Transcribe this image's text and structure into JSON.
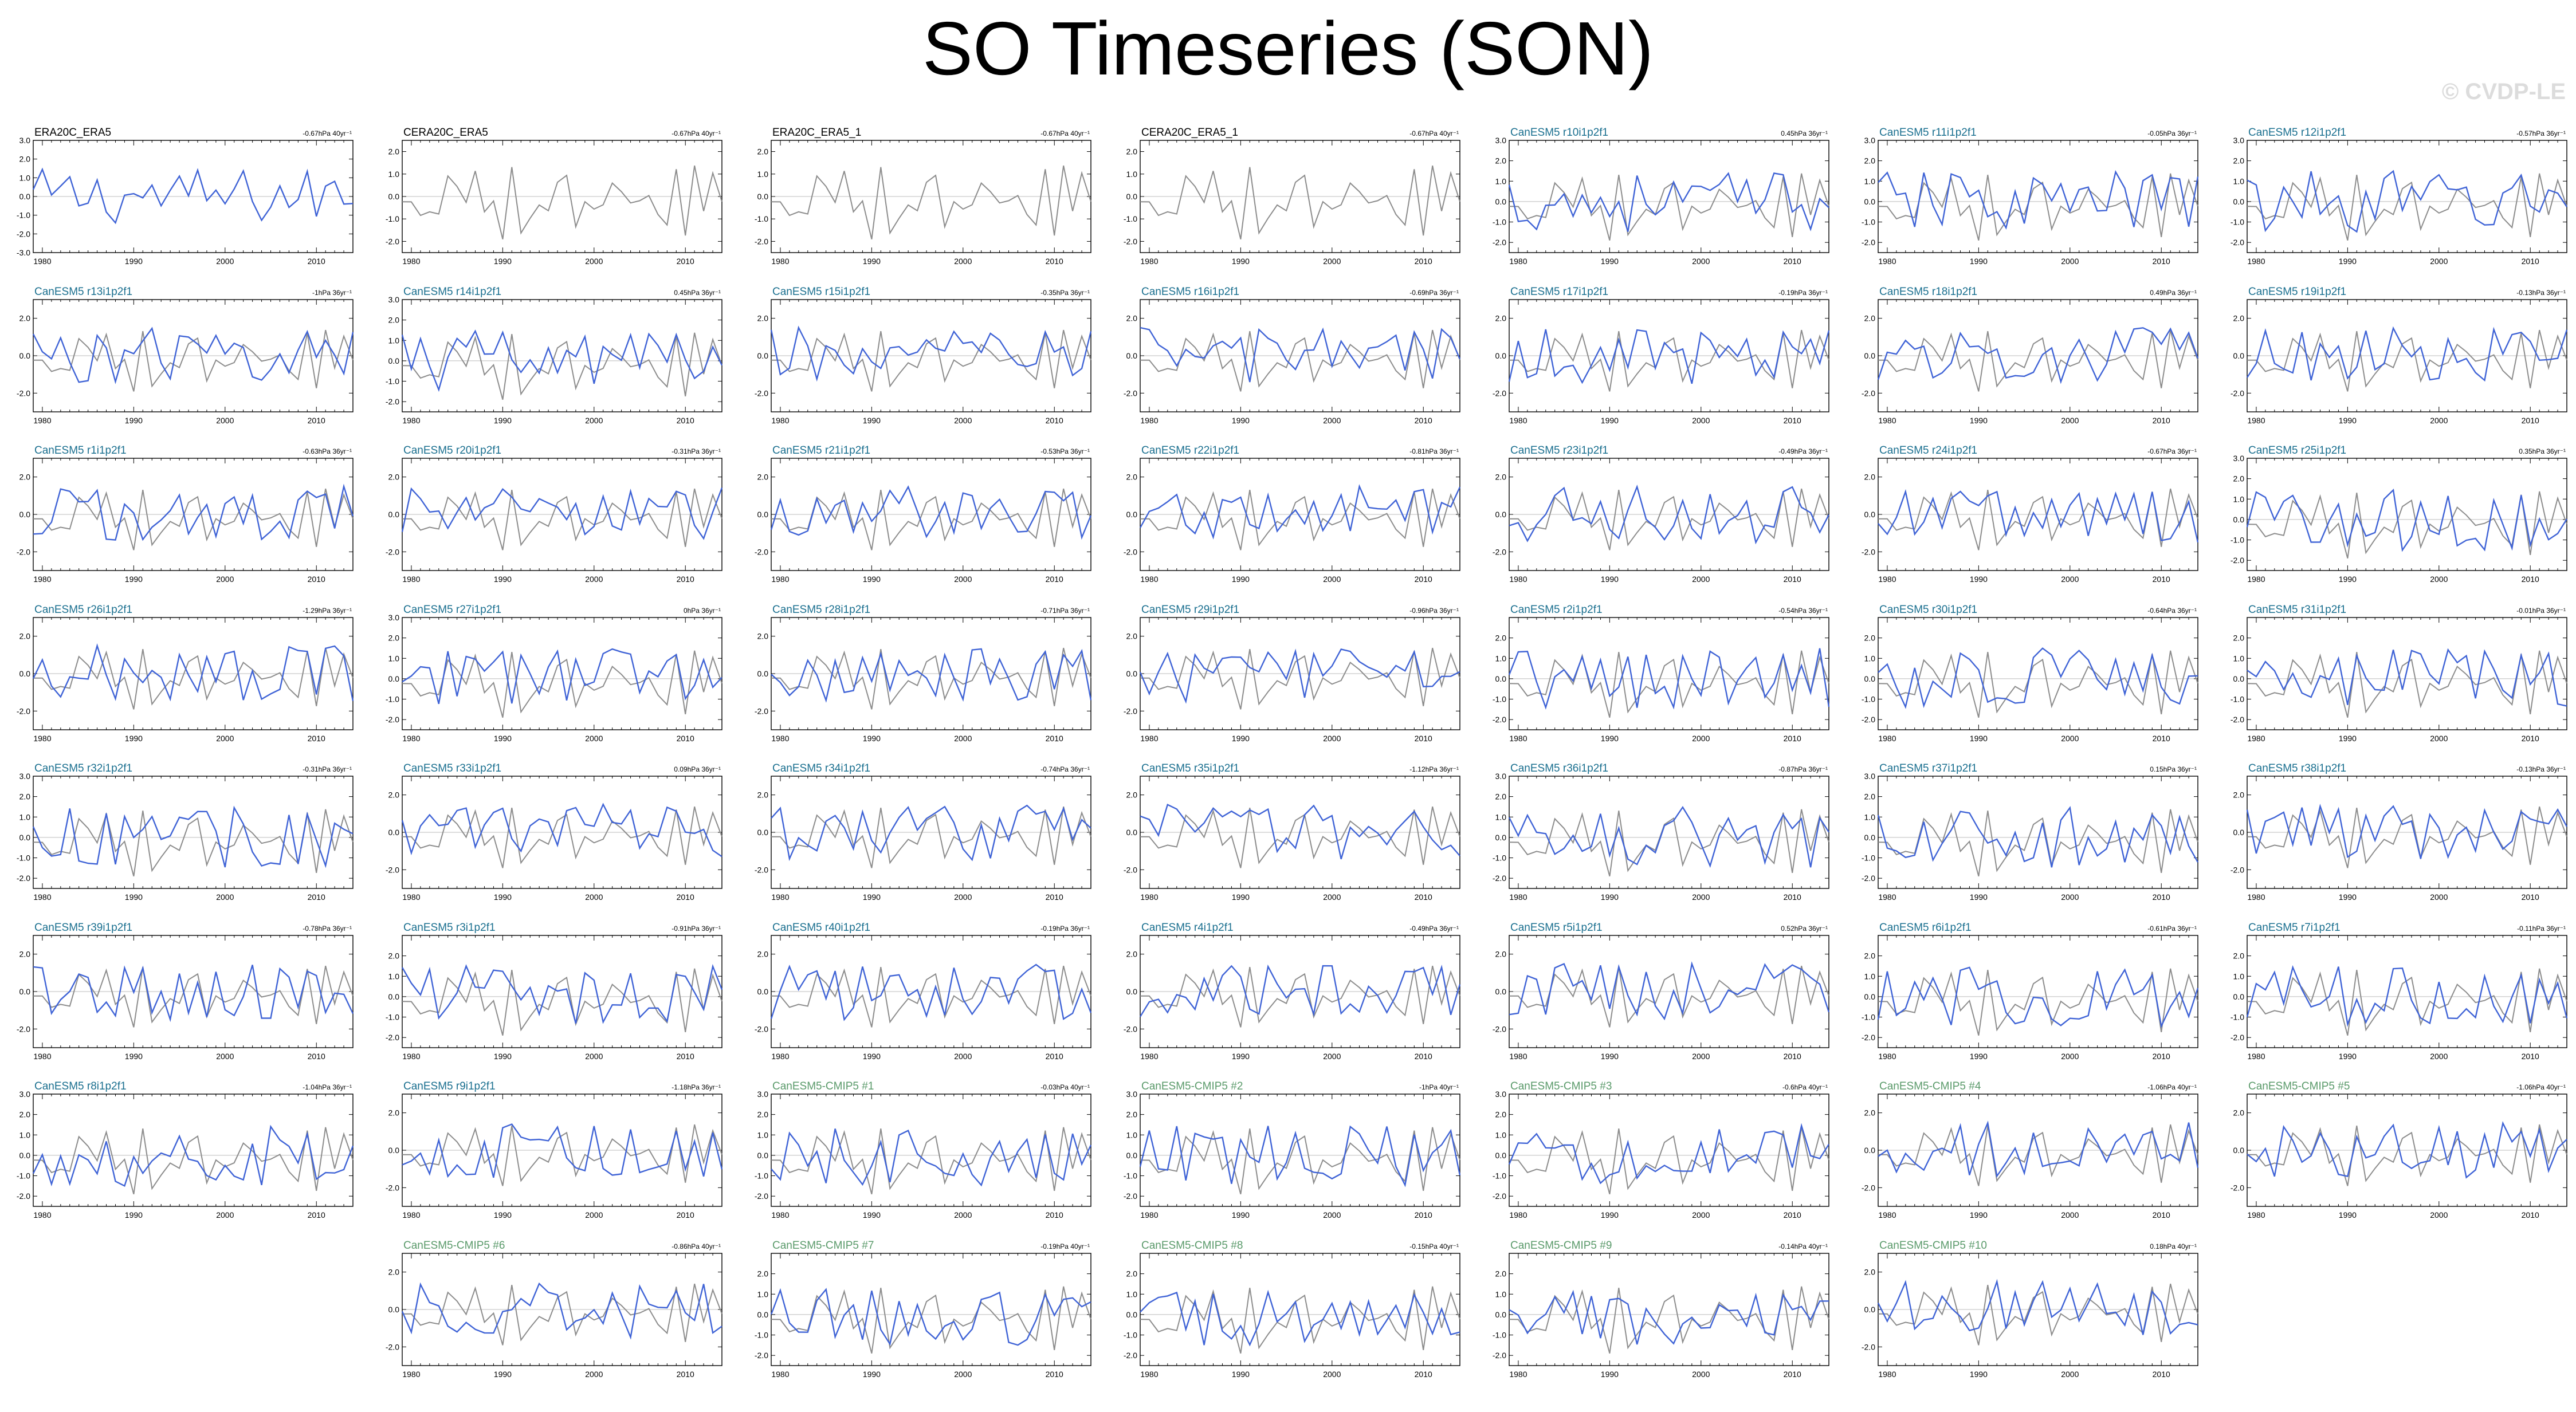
{
  "figure": {
    "title": "SO Timeseries (SON)",
    "watermark": "© CVDP-LE"
  },
  "colors": {
    "reference_line": "#8c8c8c",
    "model_line": "#3f63d6",
    "title_reference": "#000000",
    "title_large_ensemble": "#1a6f8f",
    "title_cmip": "#5a9a6a",
    "zero_line": "#bbbbbb"
  },
  "chart_data": {
    "type": "line",
    "x_range": [
      1979,
      2014
    ],
    "x_ticks": [
      "1980",
      "1990",
      "2000",
      "2010"
    ],
    "grid": false,
    "legend": "none",
    "panels": [
      {
        "title": "ERA20C_ERA5",
        "trend": "-0.67hPa 40yr⁻¹",
        "group": "obs",
        "yticks": [
          "3.0",
          "2.0",
          "1.0",
          "0.0",
          "-1.0",
          "-2.0",
          "-3.0"
        ],
        "ylim": [
          -3,
          3
        ],
        "series": [
          "model"
        ]
      },
      {
        "title": "CERA20C_ERA5",
        "trend": "-0.67hPa 40yr⁻¹",
        "group": "obs",
        "yticks": [
          "2.0",
          "1.0",
          "0.0",
          "-1.0",
          "-2.0"
        ],
        "ylim": [
          -2.5,
          2.5
        ],
        "series": [
          "reference"
        ]
      },
      {
        "title": "ERA20C_ERA5_1",
        "trend": "-0.67hPa 40yr⁻¹",
        "group": "obs",
        "yticks": [
          "2.0",
          "1.0",
          "0.0",
          "-1.0",
          "-2.0"
        ],
        "ylim": [
          -2.5,
          2.5
        ],
        "series": [
          "reference"
        ]
      },
      {
        "title": "CERA20C_ERA5_1",
        "trend": "-0.67hPa 40yr⁻¹",
        "group": "obs",
        "yticks": [
          "2.0",
          "1.0",
          "0.0",
          "-1.0",
          "-2.0"
        ],
        "ylim": [
          -2.5,
          2.5
        ],
        "series": [
          "reference"
        ]
      },
      {
        "title": "CanESM5 r10i1p2f1",
        "trend": "0.45hPa 36yr⁻¹",
        "group": "le",
        "yticks": [
          "3.0",
          "2.0",
          "1.0",
          "0.0",
          "-1.0",
          "-2.0"
        ],
        "ylim": [
          -2.5,
          3
        ],
        "series": [
          "reference",
          "model"
        ]
      },
      {
        "title": "CanESM5 r11i1p2f1",
        "trend": "-0.05hPa 36yr⁻¹",
        "group": "le",
        "yticks": [
          "3.0",
          "2.0",
          "1.0",
          "0.0",
          "-1.0",
          "-2.0"
        ],
        "ylim": [
          -2.5,
          3
        ],
        "series": [
          "reference",
          "model"
        ]
      },
      {
        "title": "CanESM5 r12i1p2f1",
        "trend": "-0.57hPa 36yr⁻¹",
        "group": "le",
        "yticks": [
          "3.0",
          "2.0",
          "1.0",
          "0.0",
          "-1.0",
          "-2.0"
        ],
        "ylim": [
          -2.5,
          3
        ],
        "series": [
          "reference",
          "model"
        ]
      },
      {
        "title": "CanESM5 r13i1p2f1",
        "trend": "-1hPa 36yr⁻¹",
        "group": "le",
        "yticks": [
          "2.0",
          "0.0",
          "-2.0"
        ],
        "ylim": [
          -3,
          3
        ],
        "series": [
          "reference",
          "model"
        ]
      },
      {
        "title": "CanESM5 r14i1p2f1",
        "trend": "0.45hPa 36yr⁻¹",
        "group": "le",
        "yticks": [
          "3.0",
          "2.0",
          "1.0",
          "0.0",
          "-1.0",
          "-2.0"
        ],
        "ylim": [
          -2.5,
          3
        ],
        "series": [
          "reference",
          "model"
        ]
      },
      {
        "title": "CanESM5 r15i1p2f1",
        "trend": "-0.35hPa 36yr⁻¹",
        "group": "le",
        "yticks": [
          "2.0",
          "0.0",
          "-2.0"
        ],
        "ylim": [
          -3,
          3
        ],
        "series": [
          "reference",
          "model"
        ]
      },
      {
        "title": "CanESM5 r16i1p2f1",
        "trend": "-0.69hPa 36yr⁻¹",
        "group": "le",
        "yticks": [
          "2.0",
          "0.0",
          "-2.0"
        ],
        "ylim": [
          -3,
          3
        ],
        "series": [
          "reference",
          "model"
        ]
      },
      {
        "title": "CanESM5 r17i1p2f1",
        "trend": "-0.19hPa 36yr⁻¹",
        "group": "le",
        "yticks": [
          "2.0",
          "0.0",
          "-2.0"
        ],
        "ylim": [
          -3,
          3
        ],
        "series": [
          "reference",
          "model"
        ]
      },
      {
        "title": "CanESM5 r18i1p2f1",
        "trend": "0.49hPa 36yr⁻¹",
        "group": "le",
        "yticks": [
          "2.0",
          "0.0",
          "-2.0"
        ],
        "ylim": [
          -3,
          3
        ],
        "series": [
          "reference",
          "model"
        ]
      },
      {
        "title": "CanESM5 r19i1p2f1",
        "trend": "-0.13hPa 36yr⁻¹",
        "group": "le",
        "yticks": [
          "2.0",
          "0.0",
          "-2.0"
        ],
        "ylim": [
          -3,
          3
        ],
        "series": [
          "reference",
          "model"
        ]
      },
      {
        "title": "CanESM5 r1i1p2f1",
        "trend": "-0.63hPa 36yr⁻¹",
        "group": "le",
        "yticks": [
          "2.0",
          "0.0",
          "-2.0"
        ],
        "ylim": [
          -3,
          3
        ],
        "series": [
          "reference",
          "model"
        ]
      },
      {
        "title": "CanESM5 r20i1p2f1",
        "trend": "-0.31hPa 36yr⁻¹",
        "group": "le",
        "yticks": [
          "2.0",
          "0.0",
          "-2.0"
        ],
        "ylim": [
          -3,
          3
        ],
        "series": [
          "reference",
          "model"
        ]
      },
      {
        "title": "CanESM5 r21i1p2f1",
        "trend": "-0.53hPa 36yr⁻¹",
        "group": "le",
        "yticks": [
          "2.0",
          "0.0",
          "-2.0"
        ],
        "ylim": [
          -3,
          3
        ],
        "series": [
          "reference",
          "model"
        ]
      },
      {
        "title": "CanESM5 r22i1p2f1",
        "trend": "-0.81hPa 36yr⁻¹",
        "group": "le",
        "yticks": [
          "2.0",
          "0.0",
          "-2.0"
        ],
        "ylim": [
          -3,
          3
        ],
        "series": [
          "reference",
          "model"
        ]
      },
      {
        "title": "CanESM5 r23i1p2f1",
        "trend": "-0.49hPa 36yr⁻¹",
        "group": "le",
        "yticks": [
          "2.0",
          "0.0",
          "-2.0"
        ],
        "ylim": [
          -3,
          3
        ],
        "series": [
          "reference",
          "model"
        ]
      },
      {
        "title": "CanESM5 r24i1p2f1",
        "trend": "-0.67hPa 36yr⁻¹",
        "group": "le",
        "yticks": [
          "2.0",
          "0.0",
          "-2.0"
        ],
        "ylim": [
          -3,
          3
        ],
        "series": [
          "reference",
          "model"
        ]
      },
      {
        "title": "CanESM5 r25i1p2f1",
        "trend": "0.35hPa 36yr⁻¹",
        "group": "le",
        "yticks": [
          "3.0",
          "2.0",
          "1.0",
          "0.0",
          "-1.0",
          "-2.0"
        ],
        "ylim": [
          -2.5,
          3
        ],
        "series": [
          "reference",
          "model"
        ]
      },
      {
        "title": "CanESM5 r26i1p2f1",
        "trend": "-1.29hPa 36yr⁻¹",
        "group": "le",
        "yticks": [
          "2.0",
          "0.0",
          "-2.0"
        ],
        "ylim": [
          -3,
          3
        ],
        "series": [
          "reference",
          "model"
        ]
      },
      {
        "title": "CanESM5 r27i1p2f1",
        "trend": "0hPa 36yr⁻¹",
        "group": "le",
        "yticks": [
          "3.0",
          "2.0",
          "1.0",
          "0.0",
          "-1.0",
          "-2.0"
        ],
        "ylim": [
          -2.5,
          3
        ],
        "series": [
          "reference",
          "model"
        ]
      },
      {
        "title": "CanESM5 r28i1p2f1",
        "trend": "-0.71hPa 36yr⁻¹",
        "group": "le",
        "yticks": [
          "2.0",
          "0.0",
          "-2.0"
        ],
        "ylim": [
          -3,
          3
        ],
        "series": [
          "reference",
          "model"
        ]
      },
      {
        "title": "CanESM5 r29i1p2f1",
        "trend": "-0.96hPa 36yr⁻¹",
        "group": "le",
        "yticks": [
          "2.0",
          "0.0",
          "-2.0"
        ],
        "ylim": [
          -3,
          3
        ],
        "series": [
          "reference",
          "model"
        ]
      },
      {
        "title": "CanESM5 r2i1p2f1",
        "trend": "-0.54hPa 36yr⁻¹",
        "group": "le",
        "yticks": [
          "2.0",
          "1.0",
          "0.0",
          "-1.0",
          "-2.0"
        ],
        "ylim": [
          -2.5,
          3
        ],
        "series": [
          "reference",
          "model"
        ]
      },
      {
        "title": "CanESM5 r30i1p2f1",
        "trend": "-0.64hPa 36yr⁻¹",
        "group": "le",
        "yticks": [
          "2.0",
          "1.0",
          "0.0",
          "-1.0",
          "-2.0"
        ],
        "ylim": [
          -2.5,
          3
        ],
        "series": [
          "reference",
          "model"
        ]
      },
      {
        "title": "CanESM5 r31i1p2f1",
        "trend": "-0.01hPa 36yr⁻¹",
        "group": "le",
        "yticks": [
          "2.0",
          "1.0",
          "0.0",
          "-1.0",
          "-2.0"
        ],
        "ylim": [
          -2.5,
          3
        ],
        "series": [
          "reference",
          "model"
        ]
      },
      {
        "title": "CanESM5 r32i1p2f1",
        "trend": "-0.31hPa 36yr⁻¹",
        "group": "le",
        "yticks": [
          "3.0",
          "2.0",
          "1.0",
          "0.0",
          "-1.0",
          "-2.0"
        ],
        "ylim": [
          -2.5,
          3
        ],
        "series": [
          "reference",
          "model"
        ]
      },
      {
        "title": "CanESM5 r33i1p2f1",
        "trend": "0.09hPa 36yr⁻¹",
        "group": "le",
        "yticks": [
          "2.0",
          "0.0",
          "-2.0"
        ],
        "ylim": [
          -3,
          3
        ],
        "series": [
          "reference",
          "model"
        ]
      },
      {
        "title": "CanESM5 r34i1p2f1",
        "trend": "-0.74hPa 36yr⁻¹",
        "group": "le",
        "yticks": [
          "2.0",
          "0.0",
          "-2.0"
        ],
        "ylim": [
          -3,
          3
        ],
        "series": [
          "reference",
          "model"
        ]
      },
      {
        "title": "CanESM5 r35i1p2f1",
        "trend": "-1.12hPa 36yr⁻¹",
        "group": "le",
        "yticks": [
          "2.0",
          "0.0",
          "-2.0"
        ],
        "ylim": [
          -3,
          3
        ],
        "series": [
          "reference",
          "model"
        ]
      },
      {
        "title": "CanESM5 r36i1p2f1",
        "trend": "-0.87hPa 36yr⁻¹",
        "group": "le",
        "yticks": [
          "3.0",
          "2.0",
          "1.0",
          "0.0",
          "-1.0",
          "-2.0"
        ],
        "ylim": [
          -2.5,
          3
        ],
        "series": [
          "reference",
          "model"
        ]
      },
      {
        "title": "CanESM5 r37i1p2f1",
        "trend": "0.15hPa 36yr⁻¹",
        "group": "le",
        "yticks": [
          "3.0",
          "2.0",
          "1.0",
          "0.0",
          "-1.0",
          "-2.0"
        ],
        "ylim": [
          -2.5,
          3
        ],
        "series": [
          "reference",
          "model"
        ]
      },
      {
        "title": "CanESM5 r38i1p2f1",
        "trend": "-0.13hPa 36yr⁻¹",
        "group": "le",
        "yticks": [
          "2.0",
          "0.0",
          "-2.0"
        ],
        "ylim": [
          -3,
          3
        ],
        "series": [
          "reference",
          "model"
        ]
      },
      {
        "title": "CanESM5 r39i1p2f1",
        "trend": "-0.78hPa 36yr⁻¹",
        "group": "le",
        "yticks": [
          "2.0",
          "0.0",
          "-2.0"
        ],
        "ylim": [
          -3,
          3
        ],
        "series": [
          "reference",
          "model"
        ]
      },
      {
        "title": "CanESM5 r3i1p2f1",
        "trend": "-0.91hPa 36yr⁻¹",
        "group": "le",
        "yticks": [
          "2.0",
          "1.0",
          "0.0",
          "-1.0",
          "-2.0"
        ],
        "ylim": [
          -2.5,
          3
        ],
        "series": [
          "reference",
          "model"
        ]
      },
      {
        "title": "CanESM5 r40i1p2f1",
        "trend": "-0.19hPa 36yr⁻¹",
        "group": "le",
        "yticks": [
          "2.0",
          "0.0",
          "-2.0"
        ],
        "ylim": [
          -3,
          3
        ],
        "series": [
          "reference",
          "model"
        ]
      },
      {
        "title": "CanESM5 r4i1p2f1",
        "trend": "-0.49hPa 36yr⁻¹",
        "group": "le",
        "yticks": [
          "2.0",
          "0.0",
          "-2.0"
        ],
        "ylim": [
          -3,
          3
        ],
        "series": [
          "reference",
          "model"
        ]
      },
      {
        "title": "CanESM5 r5i1p2f1",
        "trend": "0.52hPa 36yr⁻¹",
        "group": "le",
        "yticks": [
          "2.0",
          "0.0",
          "-2.0"
        ],
        "ylim": [
          -3,
          3
        ],
        "series": [
          "reference",
          "model"
        ]
      },
      {
        "title": "CanESM5 r6i1p2f1",
        "trend": "-0.61hPa 36yr⁻¹",
        "group": "le",
        "yticks": [
          "2.0",
          "1.0",
          "0.0",
          "-1.0",
          "-2.0"
        ],
        "ylim": [
          -2.5,
          3
        ],
        "series": [
          "reference",
          "model"
        ]
      },
      {
        "title": "CanESM5 r7i1p2f1",
        "trend": "-0.11hPa 36yr⁻¹",
        "group": "le",
        "yticks": [
          "2.0",
          "1.0",
          "0.0",
          "-1.0",
          "-2.0"
        ],
        "ylim": [
          -2.5,
          3
        ],
        "series": [
          "reference",
          "model"
        ]
      },
      {
        "title": "CanESM5 r8i1p2f1",
        "trend": "-1.04hPa 36yr⁻¹",
        "group": "le",
        "yticks": [
          "3.0",
          "2.0",
          "1.0",
          "0.0",
          "-1.0",
          "-2.0"
        ],
        "ylim": [
          -2.5,
          3
        ],
        "series": [
          "reference",
          "model"
        ]
      },
      {
        "title": "CanESM5 r9i1p2f1",
        "trend": "-1.18hPa 36yr⁻¹",
        "group": "le",
        "yticks": [
          "2.0",
          "0.0",
          "-2.0"
        ],
        "ylim": [
          -3,
          3
        ],
        "series": [
          "reference",
          "model"
        ]
      },
      {
        "title": "CanESM5-CMIP5 #1",
        "trend": "-0.03hPa 40yr⁻¹",
        "group": "cmip",
        "yticks": [
          "3.0",
          "2.0",
          "1.0",
          "0.0",
          "-1.0",
          "-2.0"
        ],
        "ylim": [
          -2.5,
          3
        ],
        "series": [
          "reference",
          "model"
        ]
      },
      {
        "title": "CanESM5-CMIP5 #2",
        "trend": "-1hPa 40yr⁻¹",
        "group": "cmip",
        "yticks": [
          "3.0",
          "2.0",
          "1.0",
          "0.0",
          "-1.0",
          "-2.0"
        ],
        "ylim": [
          -2.5,
          3
        ],
        "series": [
          "reference",
          "model"
        ]
      },
      {
        "title": "CanESM5-CMIP5 #3",
        "trend": "-0.6hPa 40yr⁻¹",
        "group": "cmip",
        "yticks": [
          "3.0",
          "2.0",
          "1.0",
          "0.0",
          "-1.0",
          "-2.0"
        ],
        "ylim": [
          -2.5,
          3
        ],
        "series": [
          "reference",
          "model"
        ]
      },
      {
        "title": "CanESM5-CMIP5 #4",
        "trend": "-1.06hPa 40yr⁻¹",
        "group": "cmip",
        "yticks": [
          "2.0",
          "0.0",
          "-2.0"
        ],
        "ylim": [
          -3,
          3
        ],
        "series": [
          "reference",
          "model"
        ]
      },
      {
        "title": "CanESM5-CMIP5 #5",
        "trend": "-1.06hPa 40yr⁻¹",
        "group": "cmip",
        "yticks": [
          "2.0",
          "0.0",
          "-2.0"
        ],
        "ylim": [
          -3,
          3
        ],
        "series": [
          "reference",
          "model"
        ]
      },
      {
        "title": "CanESM5-CMIP5 #6",
        "trend": "-0.86hPa 40yr⁻¹",
        "group": "cmip",
        "yticks": [
          "2.0",
          "0.0",
          "-2.0"
        ],
        "ylim": [
          -3,
          3
        ],
        "series": [
          "reference",
          "model"
        ]
      },
      {
        "title": "CanESM5-CMIP5 #7",
        "trend": "-0.19hPa 40yr⁻¹",
        "group": "cmip",
        "yticks": [
          "2.0",
          "1.0",
          "0.0",
          "-1.0",
          "-2.0"
        ],
        "ylim": [
          -2.5,
          3
        ],
        "series": [
          "reference",
          "model"
        ]
      },
      {
        "title": "CanESM5-CMIP5 #8",
        "trend": "-0.15hPa 40yr⁻¹",
        "group": "cmip",
        "yticks": [
          "2.0",
          "1.0",
          "0.0",
          "-1.0",
          "-2.0"
        ],
        "ylim": [
          -2.5,
          3
        ],
        "series": [
          "reference",
          "model"
        ]
      },
      {
        "title": "CanESM5-CMIP5 #9",
        "trend": "-0.14hPa 40yr⁻¹",
        "group": "cmip",
        "yticks": [
          "2.0",
          "1.0",
          "0.0",
          "-1.0",
          "-2.0"
        ],
        "ylim": [
          -2.5,
          3
        ],
        "series": [
          "reference",
          "model"
        ]
      },
      {
        "title": "CanESM5-CMIP5 #10",
        "trend": "0.18hPa 40yr⁻¹",
        "group": "cmip",
        "yticks": [
          "2.0",
          "0.0",
          "-2.0"
        ],
        "ylim": [
          -3,
          3
        ],
        "series": [
          "reference",
          "model"
        ]
      }
    ]
  }
}
